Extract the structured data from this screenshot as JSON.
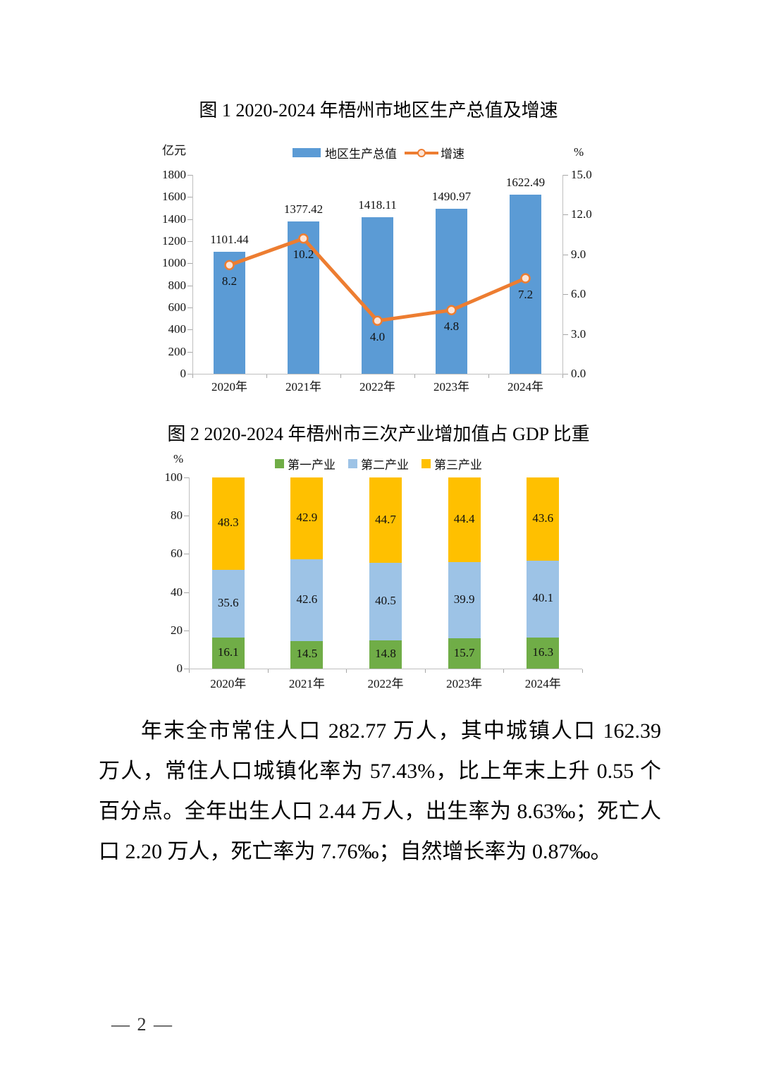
{
  "page": {
    "number": "— 2 —"
  },
  "chart_data": [
    {
      "type": "bar",
      "subtype": "bar+line-dual-axis",
      "title": "图 1  2020-2024 年梧州市地区生产总值及增速",
      "unit_left": "亿元",
      "unit_right": "%",
      "categories": [
        "2020年",
        "2021年",
        "2022年",
        "2023年",
        "2024年"
      ],
      "series": [
        {
          "name": "地区生产总值",
          "kind": "bar",
          "axis": "left",
          "values": [
            1101.44,
            1377.42,
            1418.11,
            1490.97,
            1622.49
          ],
          "labels": [
            "1101.44",
            "1377.42",
            "1418.11",
            "1490.97",
            "1622.49"
          ],
          "color": "#5B9BD5"
        },
        {
          "name": "增速",
          "kind": "line",
          "axis": "right",
          "values": [
            8.2,
            10.2,
            4.0,
            4.8,
            7.2
          ],
          "labels": [
            "8.2",
            "10.2",
            "4.0",
            "4.8",
            "7.2"
          ],
          "color": "#ED7D31",
          "marker_fill": "#FCE4D6"
        }
      ],
      "y_left": {
        "min": 0,
        "max": 1800,
        "tick_labels": [
          "0",
          "200",
          "400",
          "600",
          "800",
          "1000",
          "1200",
          "1400",
          "1600",
          "1800"
        ]
      },
      "y_right": {
        "min": 0,
        "max": 15,
        "tick_labels": [
          "0.0",
          "3.0",
          "6.0",
          "9.0",
          "12.0",
          "15.0"
        ]
      },
      "legend_position": "top",
      "grid": false
    },
    {
      "type": "bar",
      "subtype": "stacked-percent",
      "title": "图 2  2020-2024 年梧州市三次产业增加值占 GDP 比重",
      "unit_left": "%",
      "categories": [
        "2020年",
        "2021年",
        "2022年",
        "2023年",
        "2024年"
      ],
      "series": [
        {
          "name": "第一产业",
          "values": [
            16.1,
            14.5,
            14.8,
            15.7,
            16.3
          ],
          "labels": [
            "16.1",
            "14.5",
            "14.8",
            "15.7",
            "16.3"
          ],
          "color": "#70AD47"
        },
        {
          "name": "第二产业",
          "values": [
            35.6,
            42.6,
            40.5,
            39.9,
            40.1
          ],
          "labels": [
            "35.6",
            "42.6",
            "40.5",
            "39.9",
            "40.1"
          ],
          "color": "#9DC3E6"
        },
        {
          "name": "第三产业",
          "values": [
            48.3,
            42.9,
            44.7,
            44.4,
            43.6
          ],
          "labels": [
            "48.3",
            "42.9",
            "44.7",
            "44.4",
            "43.6"
          ],
          "color": "#FFC000"
        }
      ],
      "y_left": {
        "min": 0,
        "max": 100,
        "tick_labels": [
          "0",
          "20",
          "40",
          "60",
          "80",
          "100"
        ]
      },
      "legend_position": "top",
      "grid": false
    }
  ],
  "paragraph": {
    "lines": [
      "年末全市常住人口 282.77 万人，其中城镇人口 162.39",
      "万人，常住人口城镇化率为 57.43%，比上年末上升 0.55 个",
      "百分点。全年出生人口 2.44 万人，出生率为 8.63‰；死亡人",
      "口 2.20 万人，死亡率为 7.76‰；自然增长率为 0.87‰。"
    ]
  }
}
